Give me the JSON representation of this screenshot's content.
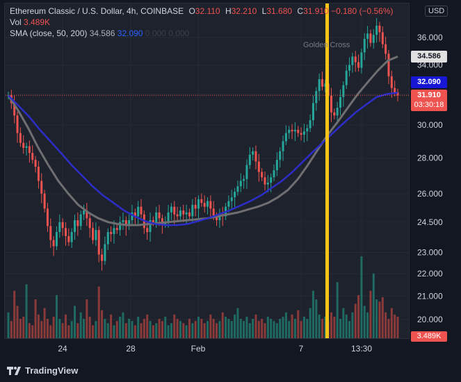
{
  "header": {
    "symbol": "Ethereum Classic / U.S. Dollar, 4h, COINBASE",
    "o_label": "O",
    "o_value": "32.110",
    "h_label": "H",
    "h_value": "32.210",
    "l_label": "L",
    "l_value": "31.680",
    "c_label": "C",
    "c_value": "31.910",
    "change": "−0.180 (−0.56%)",
    "vol_label": "Vol",
    "vol_value": "3.489K",
    "sma_label": "SMA (close, 50, 200)",
    "sma_a": "34.586",
    "sma_b": "32.090",
    "sma_c": "0.000",
    "sma_d": "0.000"
  },
  "currency": "USD",
  "price_tags": {
    "sma50": "34.586",
    "sma200": "32.090",
    "last": "31.910",
    "countdown": "03:30:18",
    "volume": "3.489K"
  },
  "footer": {
    "brand": "TradingView"
  },
  "colors": {
    "up": "#26a69a",
    "down": "#ef5350",
    "sma50": "#787b86",
    "sma200": "#2d2ec9",
    "marker": "#f7c518",
    "bg": "#1e222d"
  },
  "chart_data": {
    "type": "candlestick",
    "y_ticks": [
      "36.000",
      "34.000",
      "32.000",
      "30.000",
      "28.000",
      "26.000",
      "24.500",
      "23.000",
      "22.000",
      "21.000",
      "20.000"
    ],
    "y_top_partial": "38",
    "x_ticks": [
      "24",
      "28",
      "Feb",
      "7",
      "13:30"
    ],
    "annotation": "Golden Cross",
    "scale": "log",
    "last_price": 31.91,
    "close_series": [
      31.9,
      31.4,
      30.6,
      29.5,
      28.9,
      28.6,
      28.7,
      28.3,
      27.9,
      27.5,
      26.7,
      26.0,
      25.2,
      24.3,
      23.6,
      23.3,
      24.0,
      24.5,
      24.2,
      23.8,
      23.5,
      24.0,
      24.6,
      24.3,
      24.9,
      25.1,
      24.7,
      24.2,
      23.6,
      24.1,
      22.9,
      22.6,
      23.4,
      24.0,
      23.9,
      24.2,
      24.1,
      24.5,
      24.6,
      24.3,
      24.6,
      25.0,
      24.8,
      25.3,
      24.9,
      24.2,
      24.0,
      24.6,
      24.5,
      25.0,
      24.7,
      24.4,
      24.5,
      25.0,
      25.3,
      24.9,
      24.8,
      25.1,
      24.9,
      25.0,
      24.8,
      25.4,
      25.2,
      25.7,
      25.5,
      25.3,
      25.6,
      25.2,
      24.8,
      24.6,
      24.9,
      24.8,
      25.3,
      25.6,
      25.8,
      26.1,
      26.4,
      26.7,
      26.8,
      27.6,
      28.2,
      28.4,
      27.8,
      27.2,
      26.9,
      26.5,
      26.6,
      26.9,
      27.3,
      27.9,
      28.4,
      29.0,
      29.5,
      29.7,
      29.6,
      29.7,
      29.5,
      29.4,
      29.6,
      29.8,
      30.3,
      31.4,
      32.2,
      33.0,
      32.5,
      32.7,
      31.9,
      30.8,
      30.6,
      31.1,
      31.8,
      32.6,
      33.6,
      34.0,
      34.6,
      34.2,
      33.8,
      34.9,
      35.9,
      36.3,
      35.6,
      36.2,
      36.9,
      36.4,
      35.5,
      34.8,
      33.2,
      32.4,
      32.1,
      31.9
    ],
    "sma50": [
      31.9,
      30.9,
      29.8,
      28.6,
      27.6,
      26.7,
      26.0,
      25.4,
      25.0,
      24.7,
      24.5,
      24.4,
      24.35,
      24.35,
      24.4,
      24.45,
      24.5,
      24.55,
      24.6,
      24.65,
      24.7,
      24.8,
      24.9,
      25.0,
      25.15,
      25.3,
      25.5,
      25.8,
      26.2,
      26.8,
      27.6,
      28.5,
      29.4,
      30.2,
      31.1,
      32.0,
      32.8,
      33.6,
      34.3,
      34.6
    ],
    "sma200": [
      31.9,
      31.2,
      30.5,
      29.7,
      29.0,
      28.3,
      27.6,
      27.0,
      26.4,
      25.9,
      25.5,
      25.1,
      24.8,
      24.55,
      24.4,
      24.35,
      24.35,
      24.4,
      24.55,
      24.7,
      24.9,
      25.1,
      25.35,
      25.6,
      25.9,
      26.3,
      26.7,
      27.2,
      27.8,
      28.4,
      29.0,
      29.6,
      30.2,
      30.8,
      31.3,
      31.8,
      32.0,
      32.09
    ],
    "volume_series": [
      12,
      8,
      22,
      15,
      9,
      10,
      25,
      7,
      6,
      18,
      11,
      8,
      14,
      9,
      6,
      10,
      20,
      9,
      7,
      11,
      6,
      8,
      15,
      7,
      12,
      9,
      18,
      10,
      6,
      8,
      24,
      13,
      9,
      7,
      11,
      6,
      8,
      10,
      12,
      7,
      9,
      8,
      6,
      10,
      7,
      9,
      11,
      8,
      6,
      7,
      9,
      8,
      10,
      6,
      7,
      11,
      9,
      8,
      7,
      6,
      9,
      7,
      8,
      10,
      9,
      7,
      8,
      11,
      9,
      7,
      8,
      12,
      10,
      9,
      8,
      11,
      14,
      9,
      8,
      10,
      7,
      9,
      11,
      8,
      9,
      7,
      10,
      9,
      8,
      7,
      9,
      10,
      12,
      8,
      11,
      9,
      13,
      8,
      10,
      9,
      14,
      22,
      18,
      11,
      9,
      10,
      8,
      12,
      10,
      26,
      9,
      14,
      11,
      8,
      12,
      16,
      20,
      38,
      15,
      12,
      22,
      30,
      18,
      17,
      19,
      12,
      9,
      14,
      11,
      10
    ]
  }
}
